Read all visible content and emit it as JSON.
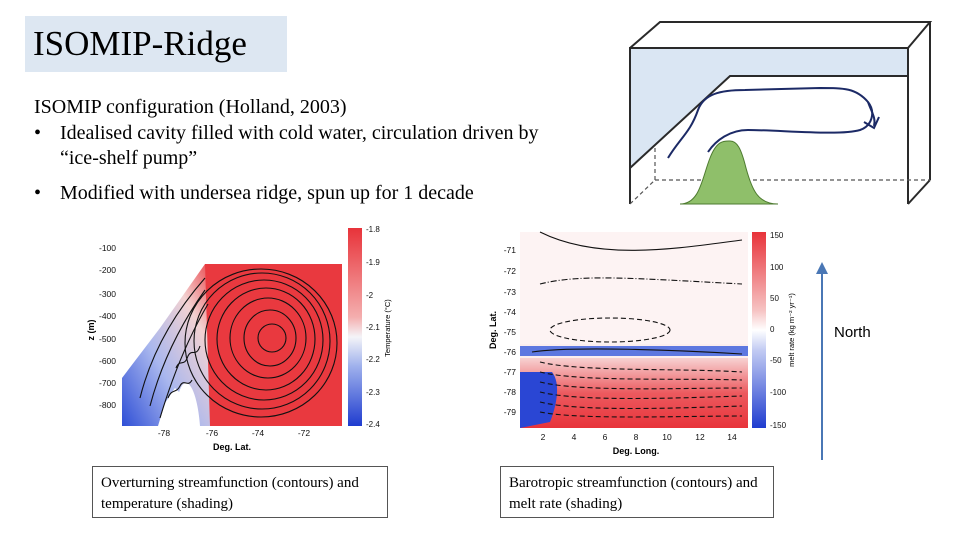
{
  "title": "ISOMIP-Ridge",
  "intro": "ISOMIP configuration (Holland, 2003)",
  "bullets": [
    "Idealised cavity filled with cold water, circulation driven by “ice-shelf pump”",
    "Modified with undersea ridge, spun up for 1 decade"
  ],
  "bullet_symbol": "•",
  "north_label": "North",
  "captions": {
    "left": "Overturning streamfunction (contours) and temperature (shading)",
    "right": "Barotropic streamfunction (contours) and melt rate (shading)"
  },
  "chart_data": [
    {
      "type": "heatmap",
      "xlabel": "Deg. Lat.",
      "ylabel": "z (m)",
      "colorbar_label": "Temperature (°C)",
      "x_ticks": [
        "-78",
        "-76",
        "-74",
        "-72"
      ],
      "y_ticks": [
        "-100",
        "-200",
        "-300",
        "-400",
        "-500",
        "-600",
        "-700",
        "-800"
      ],
      "colorbar_ticks": [
        "-1.8",
        "-1.9",
        "-2",
        "-2.1",
        "-2.2",
        "-2.3",
        "-2.4"
      ],
      "xlim": [
        -79.3,
        -70.4
      ],
      "ylim": [
        -900,
        -30
      ],
      "colorbar_range": [
        -2.4,
        -1.8
      ]
    },
    {
      "type": "heatmap",
      "xlabel": "Deg. Long.",
      "ylabel": "Deg. Lat.",
      "colorbar_label": "melt rate (kg m⁻² yr⁻¹)",
      "x_ticks": [
        "2",
        "4",
        "6",
        "8",
        "10",
        "12",
        "14"
      ],
      "y_ticks": [
        "-71",
        "-72",
        "-73",
        "-74",
        "-75",
        "-76",
        "-77",
        "-78",
        "-79"
      ],
      "colorbar_ticks": [
        "150",
        "100",
        "50",
        "0",
        "-50",
        "-100",
        "-150"
      ],
      "xlim": [
        0.5,
        15.3
      ],
      "ylim": [
        -79.9,
        -70.3
      ],
      "colorbar_range": [
        -150,
        150
      ]
    }
  ],
  "colors": {
    "title_bg": "#dde7f2",
    "ice_shelf": "#dae6f3",
    "ridge": "#8fbf6a",
    "warm": "#e8333a",
    "cold": "#1f3ccf",
    "arrow": "#4a77b5"
  }
}
